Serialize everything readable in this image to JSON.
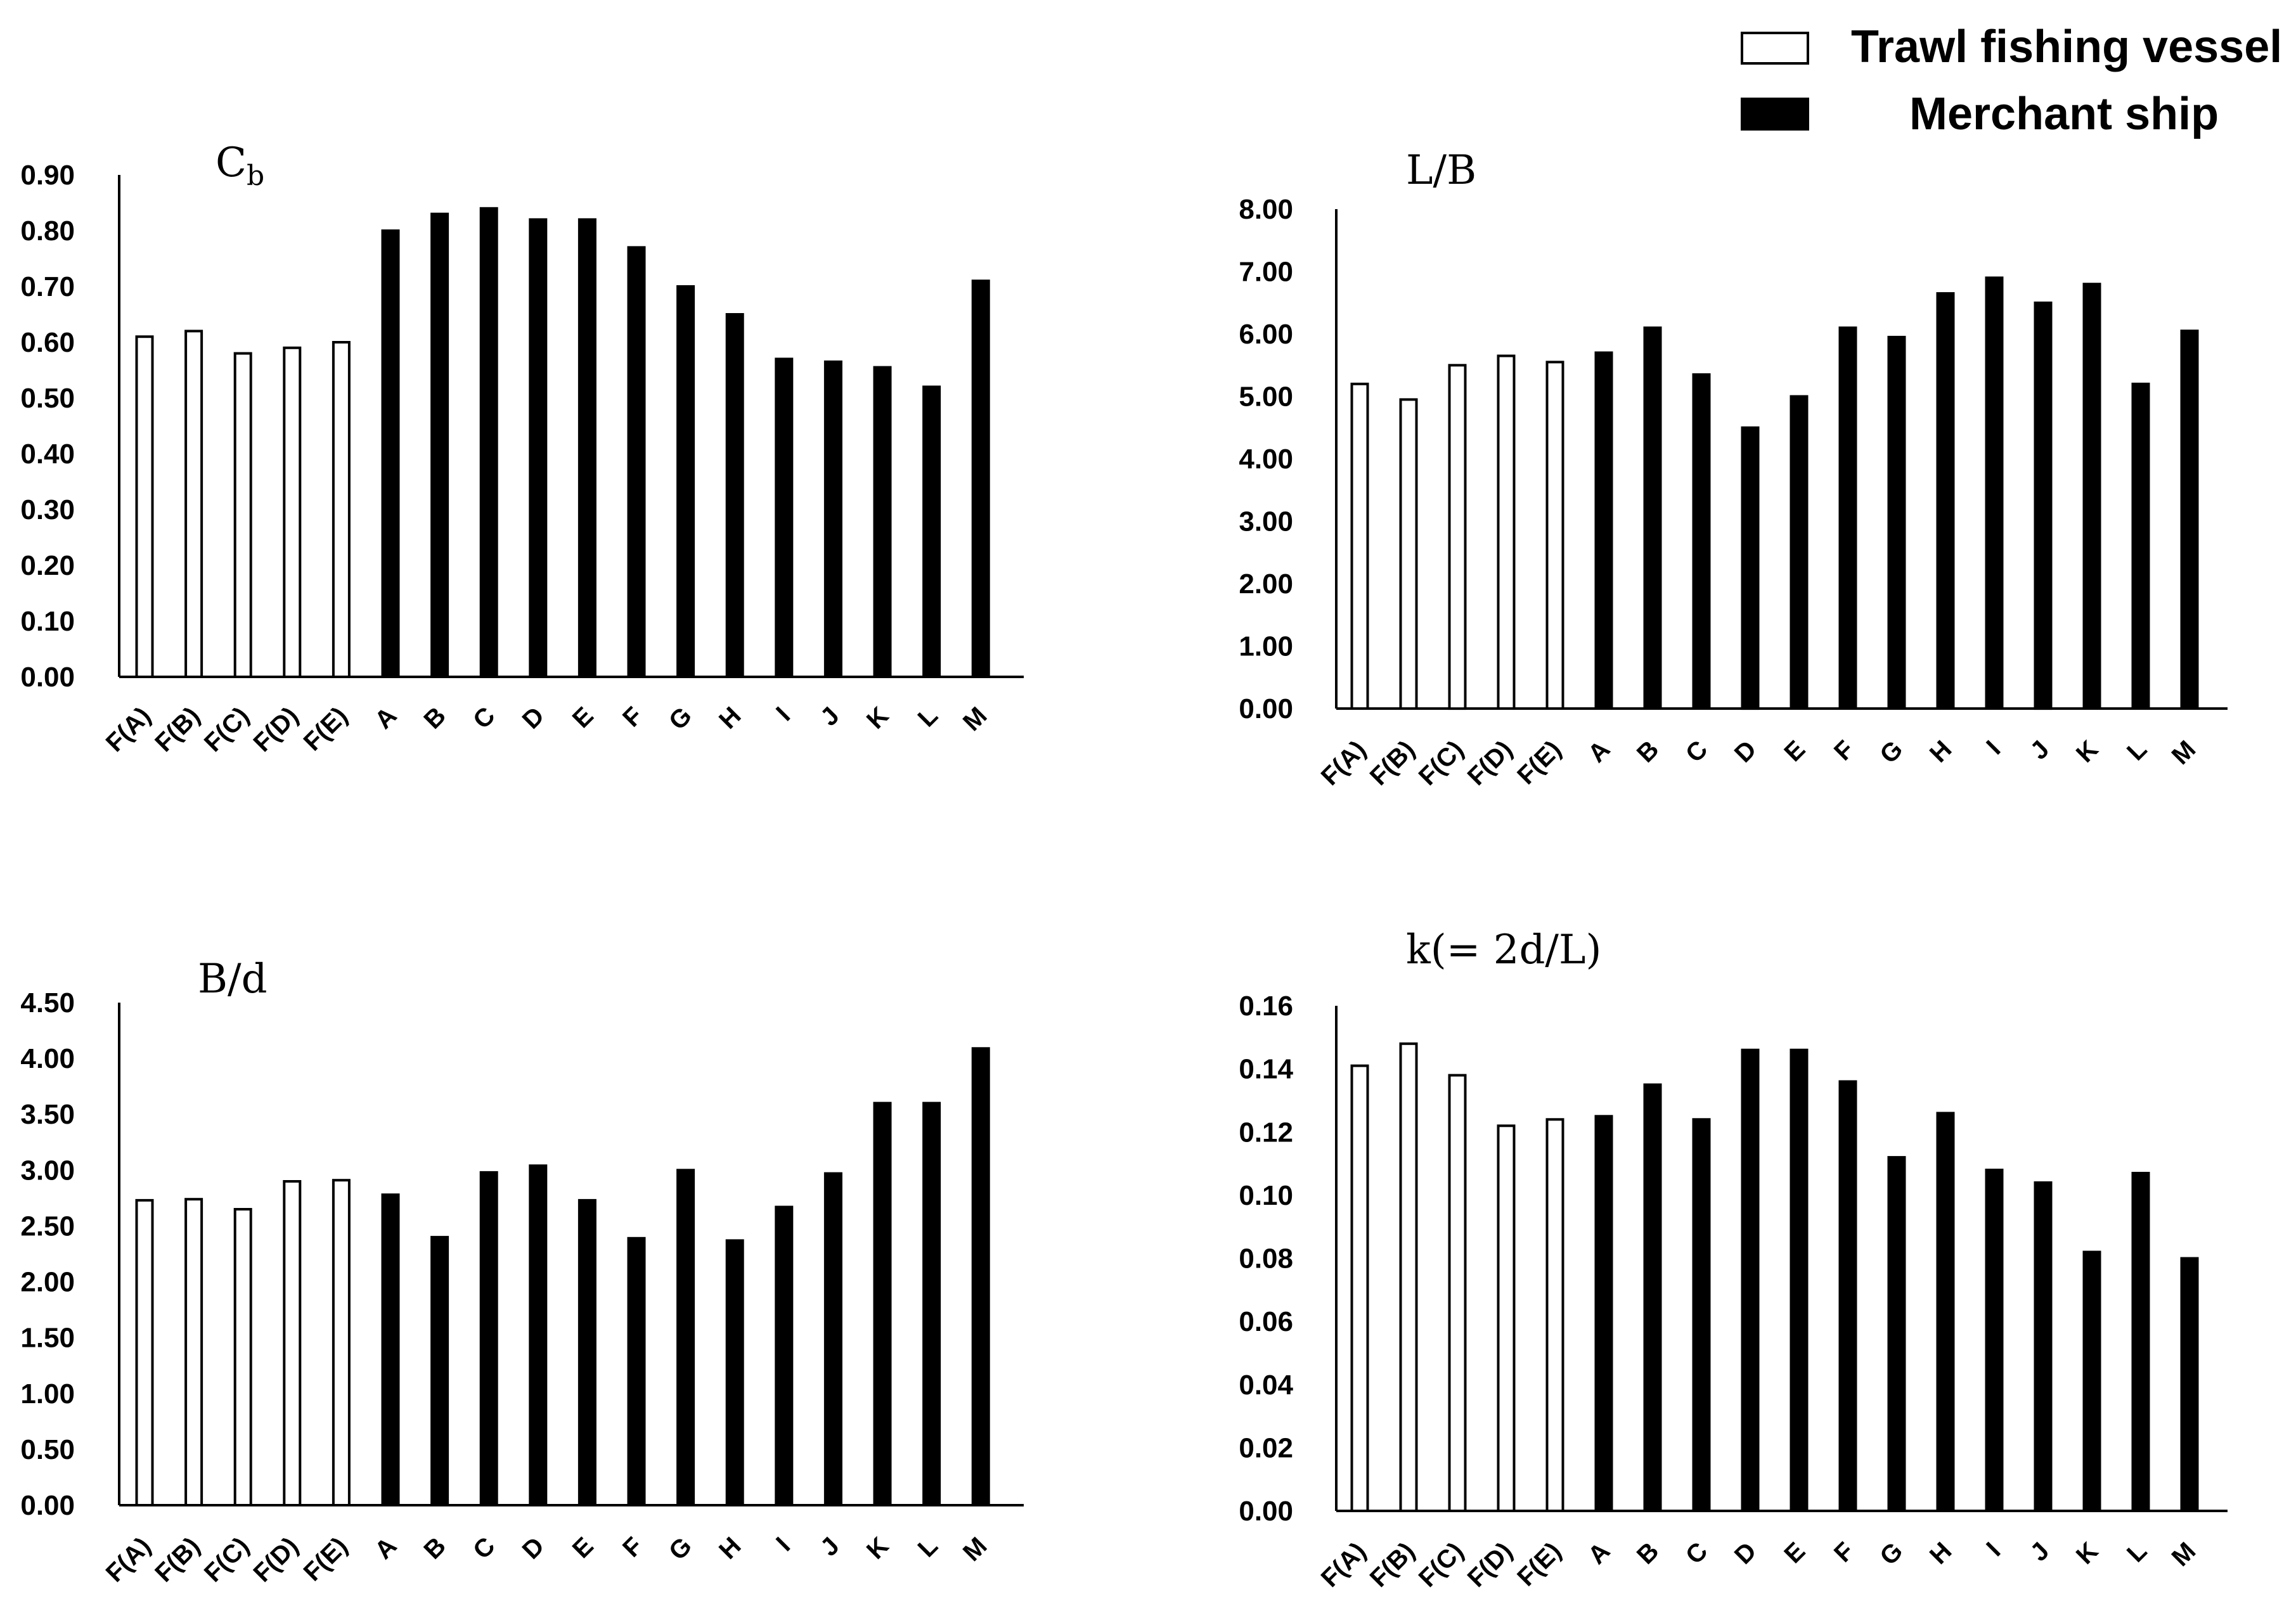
{
  "legend": {
    "items": [
      {
        "label": "Trawl fishing vessel",
        "fill": "#ffffff"
      },
      {
        "label": "Merchant ship",
        "fill": "#000000"
      }
    ]
  },
  "chart_data": [
    {
      "type": "bar",
      "title": "Cb",
      "title_main": "C",
      "title_sub": "b",
      "categories": [
        "F(A)",
        "F(B)",
        "F(C)",
        "F(D)",
        "F(E)",
        "A",
        "B",
        "C",
        "D",
        "E",
        "F",
        "G",
        "H",
        "I",
        "J",
        "K",
        "L",
        "M"
      ],
      "values": [
        0.61,
        0.62,
        0.58,
        0.59,
        0.6,
        0.8,
        0.83,
        0.84,
        0.82,
        0.82,
        0.77,
        0.7,
        0.65,
        0.57,
        0.565,
        0.555,
        0.52,
        0.71
      ],
      "series_fill": [
        "#ffffff",
        "#ffffff",
        "#ffffff",
        "#ffffff",
        "#ffffff",
        "#000000",
        "#000000",
        "#000000",
        "#000000",
        "#000000",
        "#000000",
        "#000000",
        "#000000",
        "#000000",
        "#000000",
        "#000000",
        "#000000",
        "#000000"
      ],
      "yticks": [
        "0.00",
        "0.10",
        "0.20",
        "0.30",
        "0.40",
        "0.50",
        "0.60",
        "0.70",
        "0.80",
        "0.90"
      ],
      "ylim": [
        0,
        0.9
      ],
      "xlabel": "",
      "ylabel": ""
    },
    {
      "type": "bar",
      "title": "L/B",
      "title_main": "L/B",
      "title_sub": "",
      "categories": [
        "F(A)",
        "F(B)",
        "F(C)",
        "F(D)",
        "F(E)",
        "A",
        "B",
        "C",
        "D",
        "E",
        "F",
        "G",
        "H",
        "I",
        "J",
        "K",
        "L",
        "M"
      ],
      "values": [
        5.2,
        4.95,
        5.5,
        5.65,
        5.55,
        5.7,
        6.1,
        5.35,
        4.5,
        5.0,
        6.1,
        5.95,
        6.65,
        6.9,
        6.5,
        6.8,
        5.2,
        6.05
      ],
      "series_fill": [
        "#ffffff",
        "#ffffff",
        "#ffffff",
        "#ffffff",
        "#ffffff",
        "#000000",
        "#000000",
        "#000000",
        "#000000",
        "#000000",
        "#000000",
        "#000000",
        "#000000",
        "#000000",
        "#000000",
        "#000000",
        "#000000",
        "#000000"
      ],
      "yticks": [
        "0.00",
        "1.00",
        "2.00",
        "3.00",
        "4.00",
        "5.00",
        "6.00",
        "7.00",
        "8.00"
      ],
      "ylim": [
        0,
        8
      ],
      "xlabel": "",
      "ylabel": ""
    },
    {
      "type": "bar",
      "title": "B/d",
      "title_main": "B/d",
      "title_sub": "",
      "categories": [
        "F(A)",
        "F(B)",
        "F(C)",
        "F(D)",
        "F(E)",
        "A",
        "B",
        "C",
        "D",
        "E",
        "F",
        "G",
        "H",
        "I",
        "J",
        "K",
        "L",
        "M"
      ],
      "values": [
        2.73,
        2.74,
        2.65,
        2.9,
        2.91,
        2.78,
        2.4,
        2.98,
        3.04,
        2.73,
        2.39,
        3.0,
        2.37,
        2.67,
        2.97,
        3.6,
        3.6,
        4.09
      ],
      "series_fill": [
        "#ffffff",
        "#ffffff",
        "#ffffff",
        "#ffffff",
        "#ffffff",
        "#000000",
        "#000000",
        "#000000",
        "#000000",
        "#000000",
        "#000000",
        "#000000",
        "#000000",
        "#000000",
        "#000000",
        "#000000",
        "#000000",
        "#000000"
      ],
      "yticks": [
        "0.00",
        "0.50",
        "1.00",
        "1.50",
        "2.00",
        "2.50",
        "3.00",
        "3.50",
        "4.00",
        "4.50"
      ],
      "ylim": [
        0,
        4.5
      ],
      "xlabel": "",
      "ylabel": ""
    },
    {
      "type": "bar",
      "title": "k(= 2d/L)",
      "title_main": "k(= 2d/L)",
      "title_sub": "",
      "categories": [
        "F(A)",
        "F(B)",
        "F(C)",
        "F(D)",
        "F(E)",
        "A",
        "B",
        "C",
        "D",
        "E",
        "F",
        "G",
        "H",
        "I",
        "J",
        "K",
        "L",
        "M"
      ],
      "values": [
        0.141,
        0.148,
        0.138,
        0.122,
        0.124,
        0.125,
        0.135,
        0.124,
        0.146,
        0.146,
        0.136,
        0.112,
        0.126,
        0.108,
        0.104,
        0.082,
        0.107,
        0.08
      ],
      "series_fill": [
        "#ffffff",
        "#ffffff",
        "#ffffff",
        "#ffffff",
        "#ffffff",
        "#000000",
        "#000000",
        "#000000",
        "#000000",
        "#000000",
        "#000000",
        "#000000",
        "#000000",
        "#000000",
        "#000000",
        "#000000",
        "#000000",
        "#000000"
      ],
      "yticks": [
        "0.00",
        "0.02",
        "0.04",
        "0.06",
        "0.08",
        "0.10",
        "0.12",
        "0.14",
        "0.16"
      ],
      "ylim": [
        0,
        0.16
      ],
      "xlabel": "",
      "ylabel": ""
    }
  ]
}
